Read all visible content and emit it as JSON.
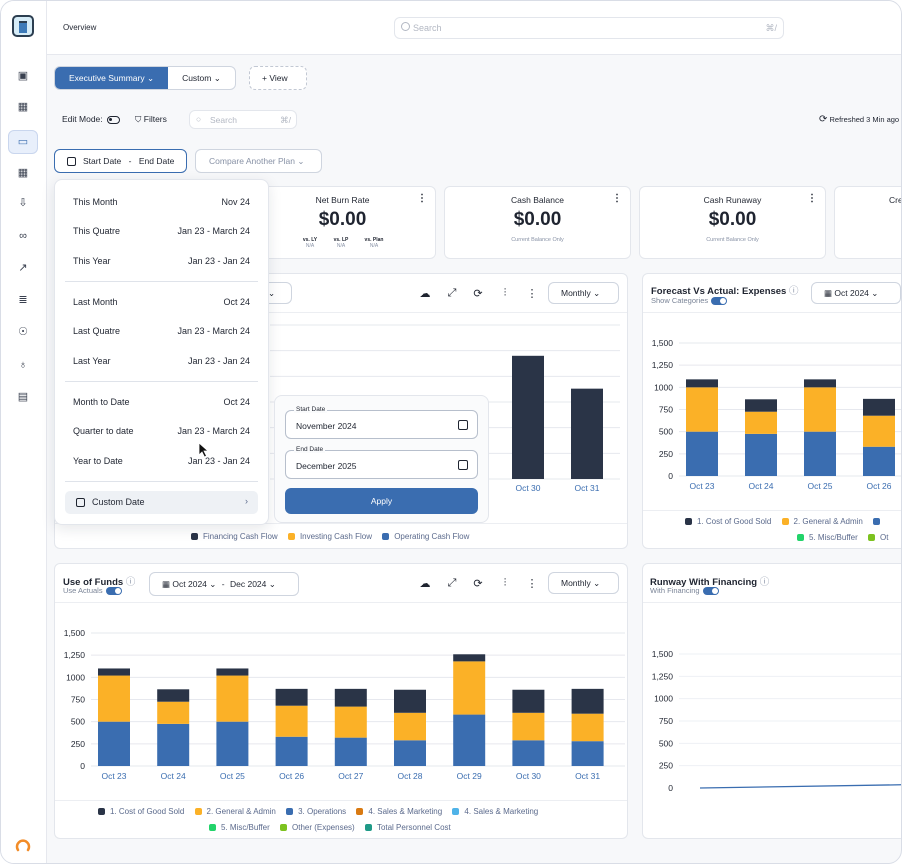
{
  "topbar": {
    "breadcrumb": "Overview",
    "search_placeholder": "Search",
    "search_shortcut": "⌘/"
  },
  "tabs": [
    {
      "label": "Executive Summary ⌄"
    },
    {
      "label": "Custom ⌄"
    }
  ],
  "view_button": "+ View",
  "toolbar": {
    "edit_mode": "Edit Mode:",
    "filters": "Filters",
    "search_placeholder": "Search",
    "search_shortcut": "⌘/",
    "refreshed": "Refreshed 3 Min ago"
  },
  "date_button": {
    "start": "Start Date",
    "sep": "-",
    "end": "End Date"
  },
  "compare_button": "Compare Another Plan ⌄",
  "kpis": [
    {
      "title": "Net Burn Rate",
      "value": "$0.00",
      "vs": [
        {
          "label": "vs. LY",
          "val": "N/A"
        },
        {
          "label": "vs. LP",
          "val": "N/A"
        },
        {
          "label": "vs. Plan",
          "val": "N/A"
        }
      ]
    },
    {
      "title": "Cash Balance",
      "value": "$0.00",
      "sub": "Current Balance Only"
    },
    {
      "title": "Cash Runaway",
      "value": "$0.00",
      "sub": "Current Balance Only"
    },
    {
      "title": "Cre",
      "value": "$"
    }
  ],
  "dropdown": {
    "groups": [
      [
        {
          "label": "This Month",
          "range": "Nov 24"
        },
        {
          "label": "This Quatre",
          "range": "Jan 23 - March 24"
        },
        {
          "label": "This Year",
          "range": "Jan 23 - Jan 24"
        }
      ],
      [
        {
          "label": "Last Month",
          "range": "Oct 24"
        },
        {
          "label": "Last Quatre",
          "range": "Jan 23 - March 24"
        },
        {
          "label": "Last Year",
          "range": "Jan 23 - Jan 24"
        }
      ],
      [
        {
          "label": "Month to Date",
          "range": "Oct 24"
        },
        {
          "label": "Quarter to date",
          "range": "Jan 23 - March 24"
        },
        {
          "label": "Year to Date",
          "range": "Jan 23 - Jan 24"
        }
      ]
    ],
    "custom": "Custom Date"
  },
  "picker": {
    "start_label": "Start Date",
    "start_value": "November 2024",
    "end_label": "End Date",
    "end_value": "December 2025",
    "apply": "Apply"
  },
  "cashflow_card": {
    "period": "Monthly ⌄",
    "legend": [
      "Financing Cash Flow",
      "Investing Cash Flow",
      "Operating Cash Flow"
    ]
  },
  "forecast_card": {
    "title": "Forecast Vs Actual: Expenses",
    "sub": "Show Categories",
    "date": "Oct 2024 ⌄",
    "legend_row1": [
      "1. Cost of Good Sold",
      "2. General & Admin",
      ""
    ],
    "legend_row2": [
      "5. Misc/Buffer",
      "Ot"
    ]
  },
  "uof_card": {
    "title": "Use of Funds",
    "sub": "Use Actuals",
    "date_from": "Oct 2024 ⌄",
    "date_sep": "-",
    "date_to": "Dec 2024 ⌄",
    "period": "Monthly ⌄",
    "legend_row1": [
      "1. Cost of Good Sold",
      "2. General & Admin",
      "3. Operations",
      "4. Sales & Marketing",
      "4. Sales & Marketing"
    ],
    "legend_row2": [
      "5. Misc/Buffer",
      "Other (Expenses)",
      "Total Personnel Cost"
    ]
  },
  "runway_card": {
    "title": "Runway With Financing",
    "sub": "With Financing"
  },
  "colors": {
    "accent": "#3a6db0",
    "navy": "#2a3447",
    "amber": "#fbb127",
    "blue": "#3a6db0",
    "orange": "#d97a12",
    "sky": "#4fb3e8",
    "green": "#22d36a",
    "lime": "#7cc21f",
    "teal": "#1f9a87"
  },
  "chart_data": [
    {
      "type": "bar",
      "stacked": true,
      "categories": [
        "",
        "",
        "",
        "",
        "",
        "",
        "",
        "Oct 30",
        "Oct 31"
      ],
      "series": [
        {
          "name": "Financing Cash Flow",
          "values": [
            null,
            null,
            null,
            null,
            null,
            null,
            null,
            1200,
            880
          ]
        },
        {
          "name": "Investing Cash Flow",
          "values": [
            null,
            null,
            null,
            null,
            null,
            null,
            null,
            0,
            0
          ]
        },
        {
          "name": "Operating Cash Flow",
          "values": [
            null,
            null,
            null,
            null,
            null,
            null,
            null,
            0,
            0
          ]
        }
      ],
      "ylim": [
        0,
        1500
      ]
    },
    {
      "type": "bar",
      "stacked": true,
      "title": "Forecast Vs Actual: Expenses",
      "categories": [
        "Oct 23",
        "Oct 24",
        "Oct 25",
        "Oct 26"
      ],
      "yticks": [
        "0",
        "250",
        "500",
        "750",
        "1000",
        "1,250",
        "1,500"
      ],
      "ylim": [
        0,
        1500
      ],
      "series": [
        {
          "name": "3. Operations",
          "values": [
            500,
            475,
            500,
            330
          ]
        },
        {
          "name": "2. General & Admin",
          "values": [
            500,
            250,
            500,
            350
          ]
        },
        {
          "name": "1. Cost of Good Sold",
          "values": [
            90,
            140,
            90,
            190
          ]
        }
      ]
    },
    {
      "type": "bar",
      "stacked": true,
      "title": "Use of Funds",
      "categories": [
        "Oct 23",
        "Oct 24",
        "Oct 25",
        "Oct 26",
        "Oct 27",
        "Oct 28",
        "Oct 29",
        "Oct 30",
        "Oct 31"
      ],
      "yticks": [
        "0",
        "250",
        "500",
        "750",
        "1000",
        "1,250",
        "1,500"
      ],
      "ylim": [
        0,
        1500
      ],
      "series": [
        {
          "name": "3. Operations",
          "values": [
            500,
            475,
            500,
            330,
            320,
            290,
            580,
            290,
            280
          ]
        },
        {
          "name": "2. General & Admin",
          "values": [
            520,
            250,
            520,
            350,
            350,
            310,
            600,
            310,
            310
          ]
        },
        {
          "name": "1. Cost of Good Sold",
          "values": [
            80,
            140,
            80,
            190,
            200,
            260,
            80,
            260,
            280
          ]
        }
      ]
    },
    {
      "type": "line",
      "title": "Runway With Financing",
      "yticks": [
        "0",
        "250",
        "500",
        "750",
        "1000",
        "1,250",
        "1,500"
      ],
      "ylim": [
        0,
        1500
      ],
      "series": [
        {
          "name": "With Financing",
          "values": [
            0,
            40
          ]
        }
      ]
    }
  ]
}
